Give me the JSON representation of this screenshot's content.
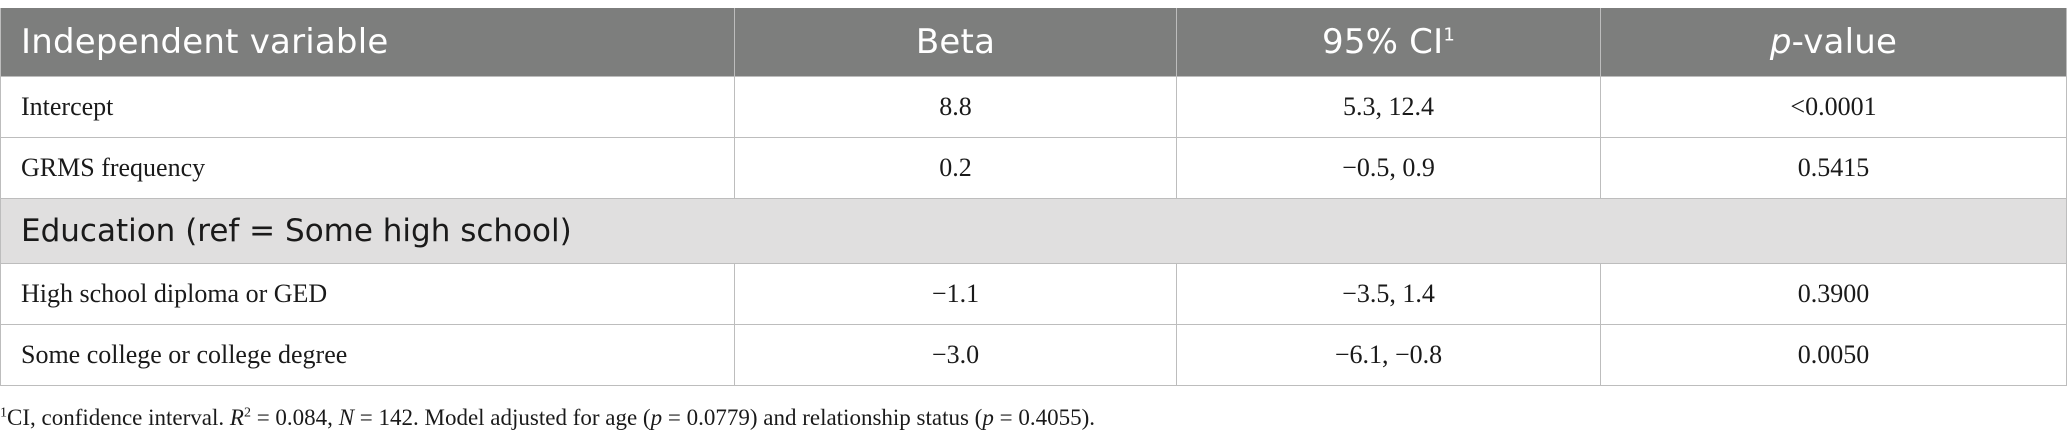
{
  "table": {
    "headers": {
      "col1": "Independent variable",
      "col2": "Beta",
      "col3": "95% CI",
      "col3_sup": "1",
      "col4_italic": "p",
      "col4_rest": "-value"
    },
    "rows_top": [
      {
        "variable": "Intercept",
        "beta": "8.8",
        "ci": "5.3, 12.4",
        "p": "<0.0001"
      },
      {
        "variable": "GRMS frequency",
        "beta": "0.2",
        "ci": "−0.5, 0.9",
        "p": "0.5415"
      }
    ],
    "section_label": "Education (ref = Some high school)",
    "rows_bottom": [
      {
        "variable": "High school diploma or GED",
        "beta": "−1.1",
        "ci": "−3.5, 1.4",
        "p": "0.3900"
      },
      {
        "variable": "Some college or college degree",
        "beta": "−3.0",
        "ci": "−6.1, −0.8",
        "p": "0.0050"
      }
    ]
  },
  "footnote": {
    "sup": "1",
    "part1": "CI, confidence interval. ",
    "r": "R",
    "r_sup": "2",
    "part2": " = 0.084, ",
    "n": "N",
    "part3": " = 142. Model adjusted for age (",
    "p1": "p",
    "part4": " = 0.0779) and relationship status (",
    "p2": "p",
    "part5": " = 0.4055)."
  }
}
